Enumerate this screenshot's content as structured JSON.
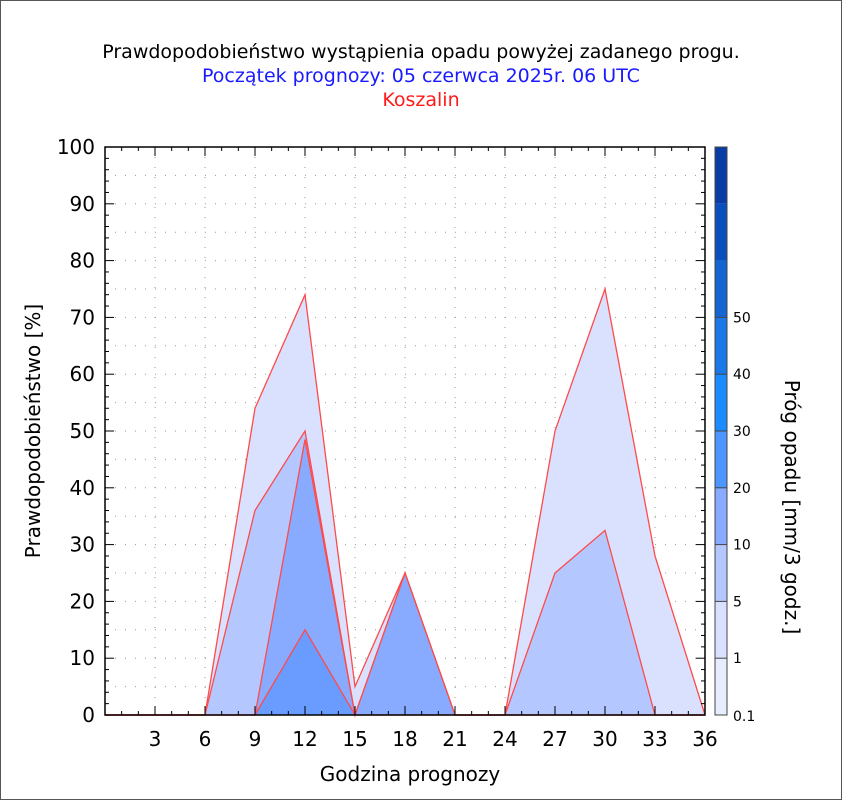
{
  "chart_data": {
    "type": "area",
    "title": "Prawdopodobieństwo wystąpienia opadu powyżej zadanego progu.",
    "subtitle": "Początek prognozy: 05 czerwca 2025r. 06 UTC",
    "location": "Koszalin",
    "xlabel": "Godzina prognozy",
    "ylabel": "Prawdopodobieństwo [%]",
    "xlim": [
      0,
      36
    ],
    "ylim": [
      0,
      100
    ],
    "x_ticks": [
      3,
      6,
      9,
      12,
      15,
      18,
      21,
      24,
      27,
      30,
      33,
      36
    ],
    "y_ticks": [
      0,
      10,
      20,
      30,
      40,
      50,
      60,
      70,
      80,
      90,
      100
    ],
    "grid": true,
    "x": [
      0,
      3,
      6,
      9,
      12,
      15,
      18,
      21,
      24,
      27,
      30,
      33,
      36
    ],
    "series": [
      {
        "threshold": 0.1,
        "color": "#d9e1ff",
        "values": [
          0,
          0,
          0,
          54,
          74,
          5,
          25,
          0,
          0,
          50,
          75,
          28,
          0
        ]
      },
      {
        "threshold": 1,
        "color": "#b4c8ff",
        "values": [
          0,
          0,
          0,
          36,
          50,
          0,
          25,
          0,
          0,
          25,
          32.5,
          0,
          0
        ]
      },
      {
        "threshold": 5,
        "color": "#88aaff",
        "values": [
          0,
          0,
          0,
          0,
          48.5,
          0,
          25,
          0,
          0,
          0,
          0,
          0,
          0
        ]
      },
      {
        "threshold": 10,
        "color": "#6a9cff",
        "values": [
          0,
          0,
          0,
          0,
          15,
          0,
          0,
          0,
          0,
          0,
          0,
          0,
          0
        ]
      }
    ],
    "colorbar": {
      "label": "Próg opadu [mm/3 godz.]",
      "labels": [
        "0.1",
        "1",
        "5",
        "10",
        "20",
        "30",
        "40",
        "50"
      ],
      "colors": [
        "#e8ecff",
        "#d9e1ff",
        "#b4c8ff",
        "#88aaff",
        "#4d96ff",
        "#1a8cff",
        "#1a78e8",
        "#1464d2",
        "#0a50bd",
        "#0a3ca6"
      ]
    }
  }
}
